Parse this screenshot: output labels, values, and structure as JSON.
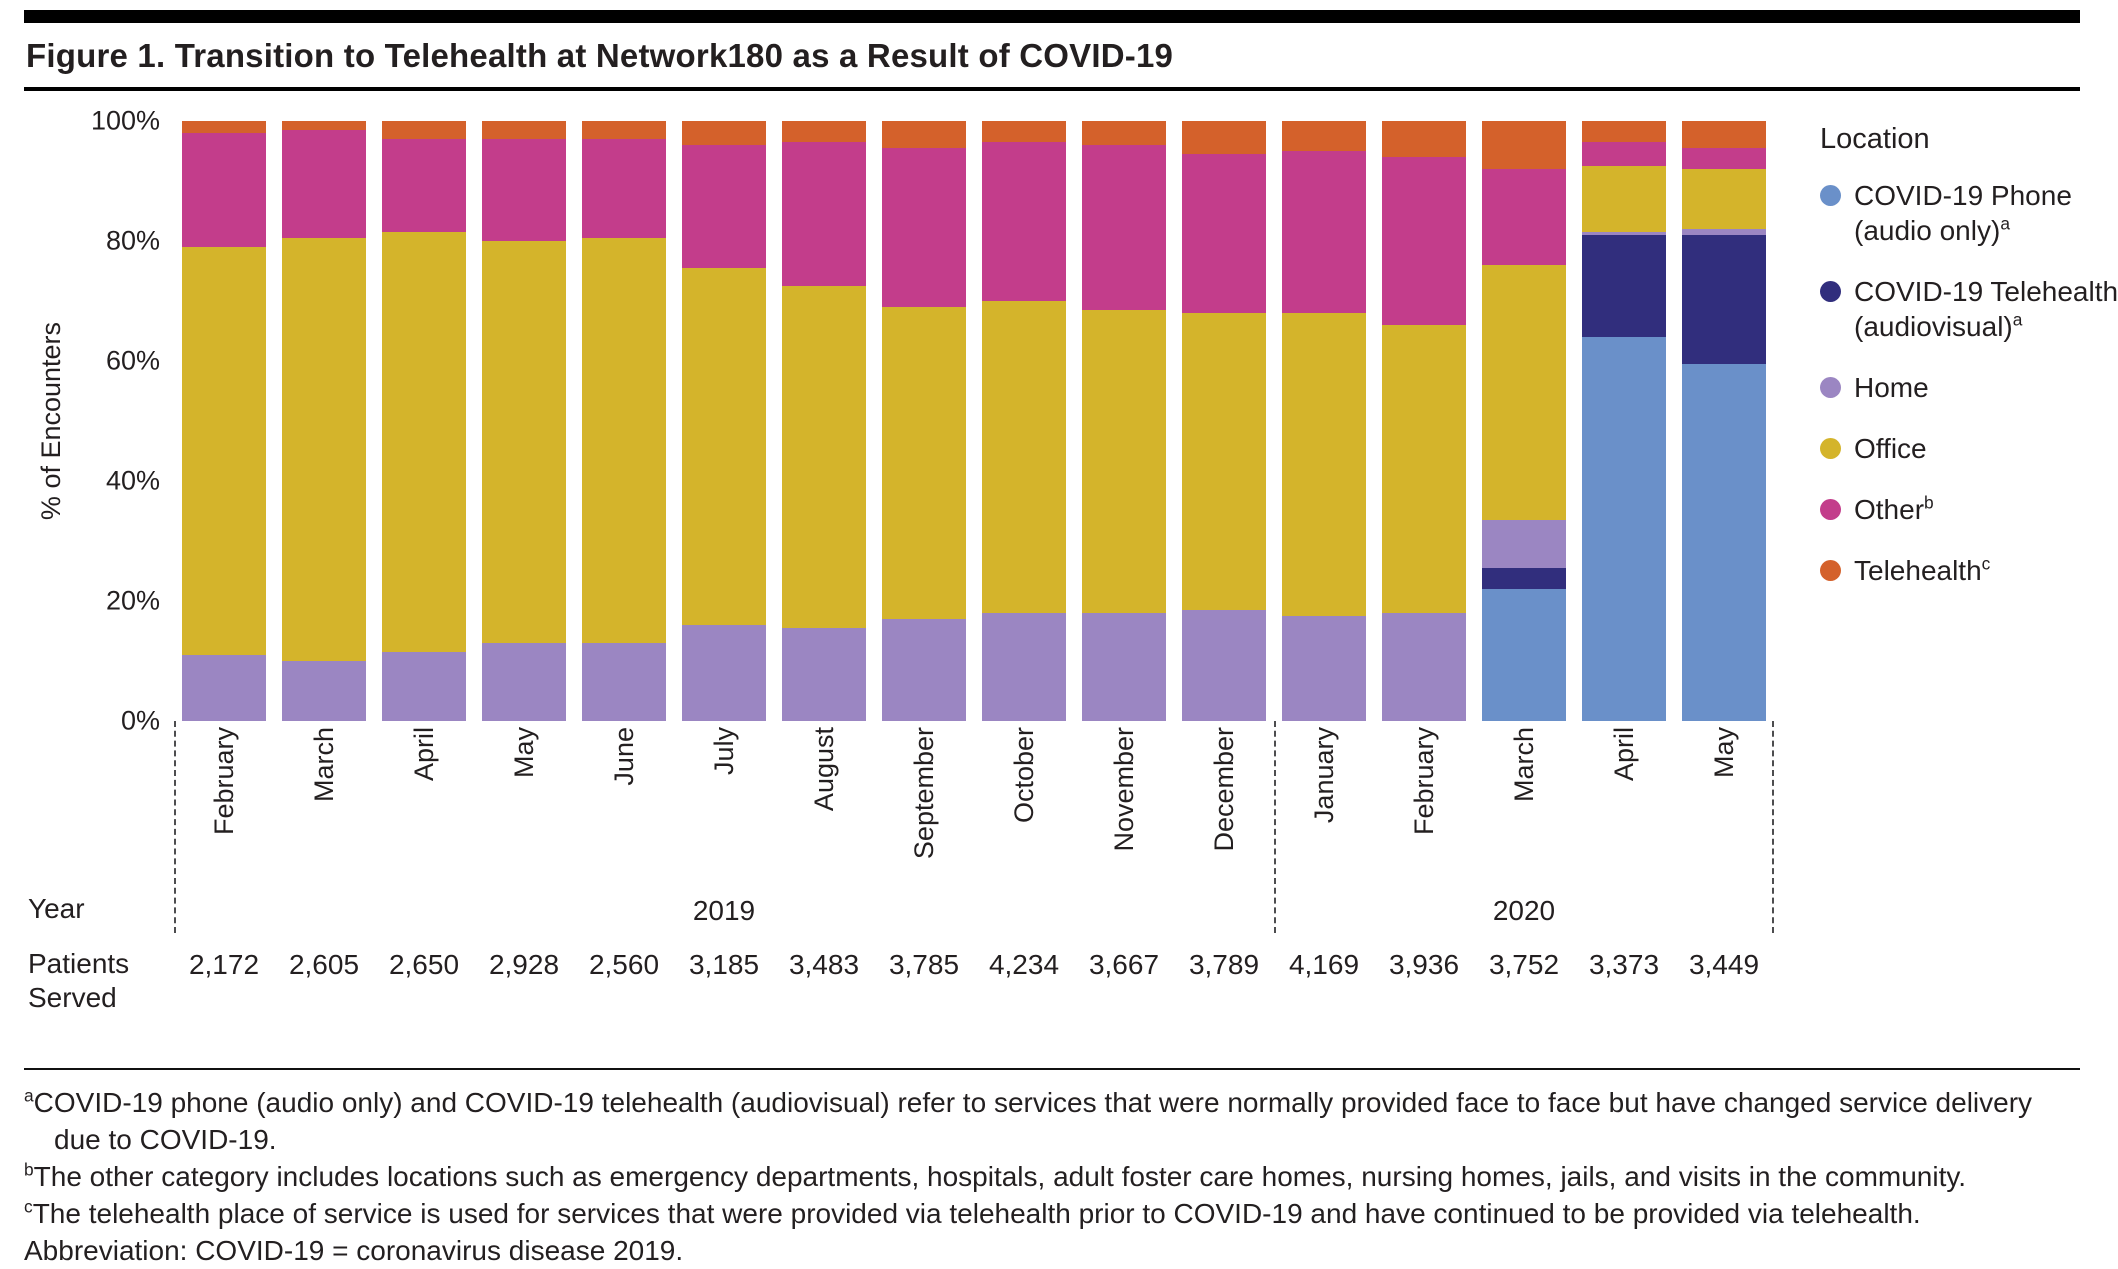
{
  "title": "Figure 1. Transition to Telehealth at Network180 as a Result of COVID-19",
  "chart_data": {
    "type": "bar",
    "stacked": true,
    "title": "Figure 1. Transition to Telehealth at Network180 as a Result of COVID-19",
    "ylabel": "% of Encounters",
    "xlabel": "",
    "ylim": [
      0,
      100
    ],
    "yticks": [
      0,
      20,
      40,
      60,
      80,
      100
    ],
    "ytick_suffix": "%",
    "grid": false,
    "legend_title": "Location",
    "legend_position": "right",
    "categories": [
      "February",
      "March",
      "April",
      "May",
      "June",
      "July",
      "August",
      "September",
      "October",
      "November",
      "December",
      "January",
      "February",
      "March",
      "April",
      "May"
    ],
    "year_groups": [
      {
        "label": "2019",
        "months": 11
      },
      {
        "label": "2020",
        "months": 5
      }
    ],
    "series": [
      {
        "name": "COVID-19 Phone (audio only)",
        "legend_lines": [
          "COVID-19 Phone",
          "(audio only)"
        ],
        "sup": "a",
        "color": "#6A90C9",
        "values": [
          0,
          0,
          0,
          0,
          0,
          0,
          0,
          0,
          0,
          0,
          0,
          0,
          0,
          22,
          64,
          59.5
        ]
      },
      {
        "name": "COVID-19 Telehealth (audiovisual)",
        "legend_lines": [
          "COVID-19 Telehealth",
          "(audiovisual)"
        ],
        "sup": "a",
        "color": "#312E7D",
        "values": [
          0,
          0,
          0,
          0,
          0,
          0,
          0,
          0,
          0,
          0,
          0,
          0,
          0,
          3.5,
          17,
          21.5
        ]
      },
      {
        "name": "Home",
        "legend_lines": [
          "Home"
        ],
        "sup": "",
        "color": "#9B86C2",
        "values": [
          11,
          10,
          11.5,
          13,
          13,
          16,
          15.5,
          17,
          18,
          18,
          18.5,
          17.5,
          18,
          8,
          0.5,
          1
        ]
      },
      {
        "name": "Office",
        "legend_lines": [
          "Office"
        ],
        "sup": "",
        "color": "#D4B42B",
        "values": [
          68,
          70.5,
          70,
          67,
          67.5,
          59.5,
          57,
          52,
          52,
          50.5,
          49.5,
          50.5,
          48,
          42.5,
          11,
          10
        ]
      },
      {
        "name": "Other",
        "legend_lines": [
          "Other"
        ],
        "sup": "b",
        "color": "#C33D8B",
        "values": [
          19,
          18,
          15.5,
          17,
          16.5,
          20.5,
          24,
          26.5,
          26.5,
          27.5,
          26.5,
          27,
          28,
          16,
          4,
          3.5
        ]
      },
      {
        "name": "Telehealth",
        "legend_lines": [
          "Telehealth"
        ],
        "sup": "c",
        "color": "#D4612B",
        "values": [
          2,
          1.5,
          3,
          3,
          3,
          4,
          3.5,
          4.5,
          3.5,
          4,
          5.5,
          5,
          6,
          8,
          3.5,
          4.5
        ]
      }
    ]
  },
  "patients": {
    "year_label": "Year",
    "row_label": "Patients Served",
    "values": [
      "2,172",
      "2,605",
      "2,650",
      "2,928",
      "2,560",
      "3,185",
      "3,483",
      "3,785",
      "4,234",
      "3,667",
      "3,789",
      "4,169",
      "3,936",
      "3,752",
      "3,373",
      "3,449"
    ]
  },
  "footnotes": [
    {
      "sup": "a",
      "text": "COVID-19 phone (audio only) and COVID-19 telehealth (audiovisual) refer to services that were normally provided face to face but have changed service delivery due to COVID-19."
    },
    {
      "sup": "b",
      "text": "The other category includes locations such as emergency departments, hospitals, adult foster care homes, nursing homes, jails, and visits in the community."
    },
    {
      "sup": "c",
      "text": "The telehealth place of service is used for services that were provided via telehealth prior to COVID-19 and have continued to be provided via telehealth."
    },
    {
      "sup": "",
      "text": "Abbreviation: COVID-19 = coronavirus disease 2019."
    }
  ]
}
